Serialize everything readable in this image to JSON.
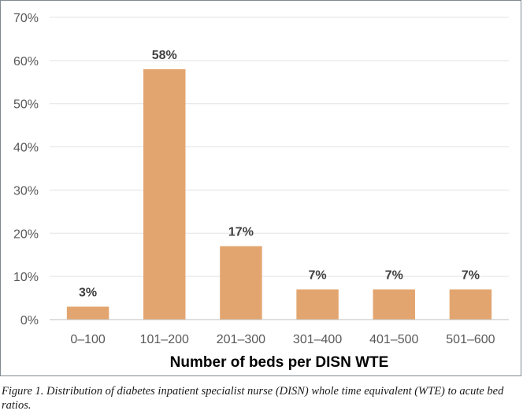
{
  "chart_data": {
    "type": "bar",
    "categories": [
      "0–100",
      "101–200",
      "201–300",
      "301–400",
      "401–500",
      "501–600"
    ],
    "values": [
      3,
      58,
      17,
      7,
      7,
      7
    ],
    "data_labels": [
      "3%",
      "58%",
      "17%",
      "7%",
      "7%",
      "7%"
    ],
    "xlabel": "Number of beds per DISN WTE",
    "ylabel": "",
    "ylim": [
      0,
      70
    ],
    "yticks": [
      0,
      10,
      20,
      30,
      40,
      50,
      60,
      70
    ],
    "ytick_labels": [
      "0%",
      "10%",
      "20%",
      "30%",
      "40%",
      "50%",
      "60%",
      "70%"
    ],
    "grid": true,
    "bar_color": "#e3a56f",
    "grid_color": "#e3e3e3"
  },
  "caption": "Figure 1. Distribution of diabetes inpatient specialist nurse (DISN) whole time equivalent (WTE) to acute bed ratios."
}
